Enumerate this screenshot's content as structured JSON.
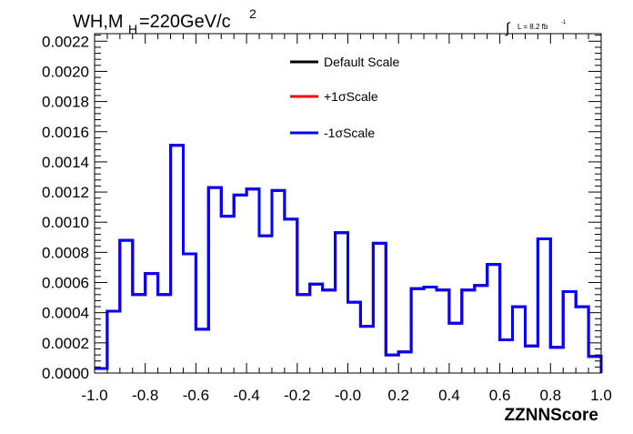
{
  "chart_data": {
    "type": "line",
    "title_main": "WH,M",
    "title_sub": "H",
    "title_rest": "=220GeV/c",
    "title_sup": "2",
    "lumi_integral": "∫",
    "lumi_label": "L = 8.2 fb",
    "lumi_sup": "-1",
    "xlabel": "ZZNNScore",
    "ylabel": "",
    "xlim": [
      -1.0,
      1.0
    ],
    "ylim": [
      0.0,
      0.00225
    ],
    "x_ticks": [
      "-1.0",
      "-0.8",
      "-0.6",
      "-0.4",
      "-0.2",
      "-0.0",
      "0.2",
      "0.4",
      "0.6",
      "0.8",
      "1.0"
    ],
    "y_ticks": [
      "0.0000",
      "0.0002",
      "0.0004",
      "0.0006",
      "0.0008",
      "0.0010",
      "0.0012",
      "0.0014",
      "0.0016",
      "0.0018",
      "0.0020",
      "0.0022"
    ],
    "bin_edges_x": [
      -1.0,
      0.05
    ],
    "legend_position": "top-center",
    "series": [
      {
        "name": "Default Scale",
        "color": "#000000",
        "values": [
          3e-05,
          0.00041,
          0.00088,
          0.00052,
          0.00066,
          0.00052,
          0.00151,
          0.00079,
          0.00029,
          0.00123,
          0.00104,
          0.00118,
          0.00122,
          0.00091,
          0.00121,
          0.00102,
          0.00052,
          0.00059,
          0.00055,
          0.00093,
          0.00047,
          0.00031,
          0.00086,
          0.00012,
          0.00014,
          0.00056,
          0.00057,
          0.00055,
          0.00033,
          0.00055,
          0.00058,
          0.00072,
          0.00022,
          0.00044,
          0.00018,
          0.00089,
          0.00017,
          0.00054,
          0.00044,
          0.00011,
          0.0
        ]
      },
      {
        "name": "+1σScale",
        "color": "#ff0000",
        "values": [
          3e-05,
          0.00041,
          0.00088,
          0.00052,
          0.00066,
          0.00052,
          0.00151,
          0.00079,
          0.00029,
          0.00123,
          0.00104,
          0.00118,
          0.00122,
          0.00091,
          0.00121,
          0.00102,
          0.00052,
          0.00059,
          0.00055,
          0.00093,
          0.00047,
          0.00031,
          0.00086,
          0.00012,
          0.00014,
          0.00056,
          0.00057,
          0.00055,
          0.00033,
          0.00055,
          0.00058,
          0.00072,
          0.00022,
          0.00044,
          0.00018,
          0.00089,
          0.00017,
          0.00054,
          0.00044,
          0.00011,
          0.0
        ]
      },
      {
        "name": "-1σScale",
        "color": "#0000ff",
        "values": [
          3e-05,
          0.00041,
          0.00088,
          0.00052,
          0.00066,
          0.00052,
          0.00151,
          0.00079,
          0.00029,
          0.00123,
          0.00104,
          0.00118,
          0.00122,
          0.00091,
          0.00121,
          0.00102,
          0.00052,
          0.00059,
          0.00055,
          0.00093,
          0.00047,
          0.00031,
          0.00086,
          0.00012,
          0.00014,
          0.00056,
          0.00057,
          0.00055,
          0.00033,
          0.00055,
          0.00058,
          0.00072,
          0.00022,
          0.00044,
          0.00018,
          0.00089,
          0.00017,
          0.00054,
          0.00044,
          0.00011,
          0.0
        ]
      }
    ]
  }
}
